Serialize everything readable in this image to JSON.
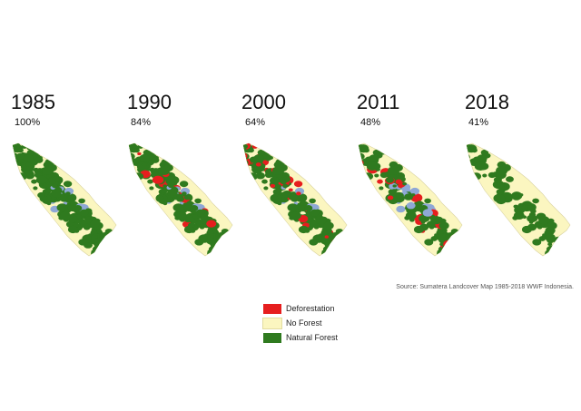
{
  "panels": [
    {
      "year": "1985",
      "percent": "100%",
      "forest": 1.0,
      "defor": 0.0,
      "water": 0.1
    },
    {
      "year": "1990",
      "percent": "84%",
      "forest": 0.84,
      "defor": 0.1,
      "water": 0.08
    },
    {
      "year": "2000",
      "percent": "64%",
      "forest": 0.64,
      "defor": 0.22,
      "water": 0.07
    },
    {
      "year": "2011",
      "percent": "48%",
      "forest": 0.48,
      "defor": 0.07,
      "water": 0.14
    },
    {
      "year": "2018",
      "percent": "41%",
      "forest": 0.41,
      "defor": 0.0,
      "water": 0.0
    }
  ],
  "source": "Source: Sumatera Landcover Map 1985-2018 WWF Indonesia.",
  "legend": [
    {
      "label": "Deforestation",
      "color": "#e61e1e"
    },
    {
      "label": "No Forest",
      "color": "#fbf6c0"
    },
    {
      "label": "Natural Forest",
      "color": "#2f7a1f"
    }
  ],
  "colors": {
    "water": "#8fa8d6",
    "outline": "#d9d3a0"
  }
}
